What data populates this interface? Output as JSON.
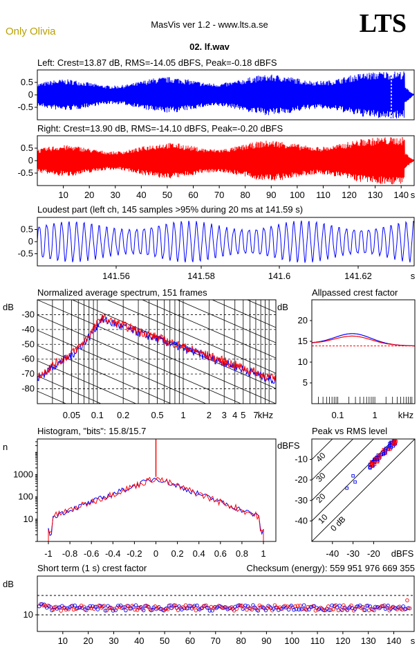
{
  "header": {
    "tagline": "Only Olivia",
    "app_title": "MasVis ver 1.2 - www.lts.a.se",
    "brand": "LTS",
    "file_name": "02. lf.wav"
  },
  "colors": {
    "left": "#0000ff",
    "right": "#ff0000",
    "grid": "#000000",
    "ref": "#ff0000"
  },
  "chart_data": [
    {
      "id": "left",
      "type": "line",
      "title": "Left: Crest=13.87 dB, RMS=-14.05 dBFS, Peak=-0.18 dBFS",
      "yticks": [
        "0.5",
        "0",
        "-0.5"
      ],
      "ylim": [
        -1,
        1
      ]
    },
    {
      "id": "right",
      "type": "line",
      "title": "Right: Crest=13.90 dB, RMS=-14.10 dBFS, Peak=-0.20 dBFS",
      "yticks": [
        "0.5",
        "0",
        "-0.5"
      ],
      "xticks": [
        "10",
        "20",
        "30",
        "40",
        "50",
        "60",
        "70",
        "80",
        "90",
        "100",
        "110",
        "120",
        "130",
        "140",
        "s"
      ],
      "ylim": [
        -1,
        1
      ]
    },
    {
      "id": "loudest",
      "type": "line",
      "title": "Loudest part (left  ch, 145 samples >95% during 20 ms at 141.59 s)",
      "yticks": [
        "0.5",
        "0",
        "-0.5"
      ],
      "xticks": [
        "141.56",
        "141.58",
        "141.6",
        "141.62",
        "s"
      ]
    },
    {
      "id": "spectrum",
      "type": "line",
      "title": "Normalized average spectrum, 151 frames",
      "ylabel": "dB",
      "yticks": [
        "-30",
        "-40",
        "-50",
        "-60",
        "-70",
        "-80"
      ],
      "xticks": [
        "0.05",
        "0.1",
        "0.2",
        "0.5",
        "1",
        "2",
        "3",
        "4",
        "5",
        "7",
        "kHz"
      ]
    },
    {
      "id": "allpass",
      "type": "line",
      "title": "Allpassed crest factor",
      "ylabel": "dB",
      "yticks": [
        "20",
        "15",
        "10",
        "5"
      ],
      "xticks": [
        "0.1",
        "1",
        "kHz"
      ],
      "ref_value": 13.9
    },
    {
      "id": "histogram",
      "type": "line",
      "title": "Histogram, \"bits\": 15.8/15.7",
      "ylabel": "n",
      "yticks": [
        "1000",
        "100",
        "10"
      ],
      "xticks": [
        "-1",
        "-0.8",
        "-0.6",
        "-0.4",
        "-0.2",
        "0",
        "0.2",
        "0.4",
        "0.6",
        "0.8",
        "1"
      ]
    },
    {
      "id": "peakrms",
      "type": "scatter",
      "title": "Peak vs RMS level",
      "ylabel": "dBFS",
      "yticks": [
        "-10",
        "-20",
        "-30",
        "-40"
      ],
      "xticks": [
        "-40",
        "-30",
        "-20",
        "dBFS"
      ],
      "diag_labels": [
        "40",
        "30",
        "20",
        "10",
        "0 dB"
      ]
    },
    {
      "id": "shortcrest",
      "type": "scatter",
      "title": "Short term (1 s) crest factor",
      "checksum": "Checksum (energy):   559 951 976 669 355",
      "ylabel": "dB",
      "yticks": [
        "10"
      ],
      "xticks": [
        "10",
        "20",
        "30",
        "40",
        "50",
        "60",
        "70",
        "80",
        "90",
        "100",
        "110",
        "120",
        "130",
        "140",
        "s"
      ]
    }
  ]
}
